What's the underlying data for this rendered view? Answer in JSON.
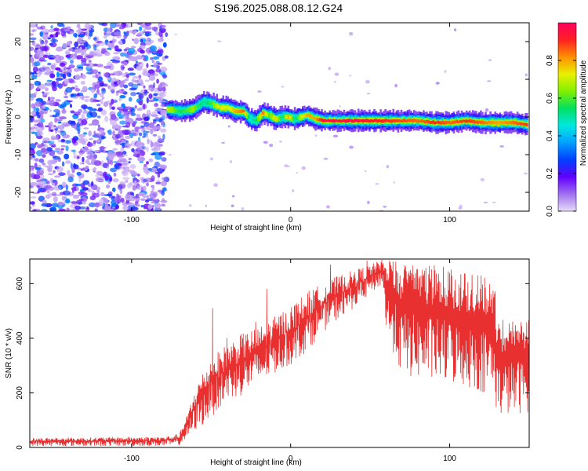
{
  "title": "S196.2025.088.08.12.G24",
  "chart_data": [
    {
      "type": "heatmap",
      "xlabel": "Height of straight line (km)",
      "ylabel": "Frequency (Hz)",
      "xlim": [
        -164,
        150
      ],
      "ylim": [
        -25,
        25
      ],
      "xticks": [
        -100,
        0,
        100
      ],
      "yticks": [
        -20,
        -10,
        0,
        10,
        20
      ],
      "colorbar": {
        "label": "Normalized spectral amplitude",
        "range": [
          0,
          1
        ],
        "ticks": [
          "0.0",
          "0.2",
          "0.4",
          "0.6",
          "0.8"
        ],
        "colors": [
          "#e8dcf8",
          "#a070f0",
          "#6000ff",
          "#0040ff",
          "#00a0ff",
          "#00e8e0",
          "#00e060",
          "#80f000",
          "#e8f000",
          "#ff9000",
          "#ff2020",
          "#ff0060"
        ]
      },
      "noise_region": {
        "x_range": [
          -164,
          -80
        ],
        "description_level": "scattered low amplitude"
      },
      "signal_ridge": {
        "x": [
          -78,
          -70,
          -62,
          -55,
          -50,
          -45,
          -40,
          -35,
          -30,
          -26,
          -22,
          -18,
          -14,
          -10,
          -6,
          -2,
          2,
          6,
          10,
          15,
          20,
          40,
          60,
          80,
          90,
          100,
          110,
          120,
          130,
          140,
          148
        ],
        "freq": [
          2,
          1.5,
          2,
          4,
          3.5,
          2.5,
          2.5,
          1.5,
          1.5,
          -0.5,
          -1,
          1,
          0.5,
          -0.5,
          0,
          0,
          -0.5,
          0,
          0.5,
          -0.5,
          -1,
          -1,
          -1,
          -1,
          -1.5,
          -1.5,
          -1,
          -1.5,
          -1.5,
          -1.5,
          -2
        ],
        "amplitude": [
          0.7,
          0.55,
          0.65,
          0.5,
          0.6,
          0.75,
          0.7,
          0.8,
          0.85,
          0.45,
          0.55,
          0.85,
          0.6,
          0.75,
          0.5,
          0.8,
          0.5,
          0.7,
          0.8,
          0.8,
          0.95,
          0.95,
          0.9,
          0.85,
          0.9,
          0.85,
          0.9,
          0.85,
          0.8,
          0.85,
          0.9
        ]
      },
      "grid": false
    },
    {
      "type": "line",
      "xlabel": "Height of straight line (km)",
      "ylabel": "SNR (10 * v/v)",
      "xlim": [
        -164,
        150
      ],
      "ylim": [
        0,
        690
      ],
      "xticks": [
        -100,
        0,
        100
      ],
      "yticks": [
        0,
        200,
        400,
        600
      ],
      "color": "#e83030",
      "grid": false,
      "envelope": {
        "x": [
          -164,
          -80,
          -70,
          -65,
          -60,
          -55,
          -50,
          -40,
          -30,
          -20,
          -10,
          0,
          10,
          20,
          30,
          40,
          50,
          58,
          60,
          70,
          80,
          90,
          100,
          110,
          120,
          128,
          130,
          140,
          150
        ],
        "lower": [
          5,
          5,
          8,
          30,
          60,
          80,
          110,
          170,
          190,
          230,
          270,
          300,
          350,
          420,
          470,
          510,
          560,
          600,
          420,
          260,
          250,
          240,
          230,
          220,
          200,
          190,
          110,
          120,
          130
        ],
        "upper": [
          35,
          40,
          50,
          120,
          220,
          280,
          330,
          380,
          420,
          440,
          480,
          520,
          570,
          600,
          630,
          650,
          670,
          690,
          690,
          690,
          680,
          670,
          660,
          640,
          630,
          620,
          470,
          480,
          490
        ],
        "spikes": [
          {
            "x": -49,
            "y": 510
          },
          {
            "x": -40,
            "y": 400
          },
          {
            "x": -22,
            "y": 460
          },
          {
            "x": -15,
            "y": 580
          },
          {
            "x": 25,
            "y": 670
          },
          {
            "x": 48,
            "y": 685
          }
        ]
      }
    }
  ]
}
